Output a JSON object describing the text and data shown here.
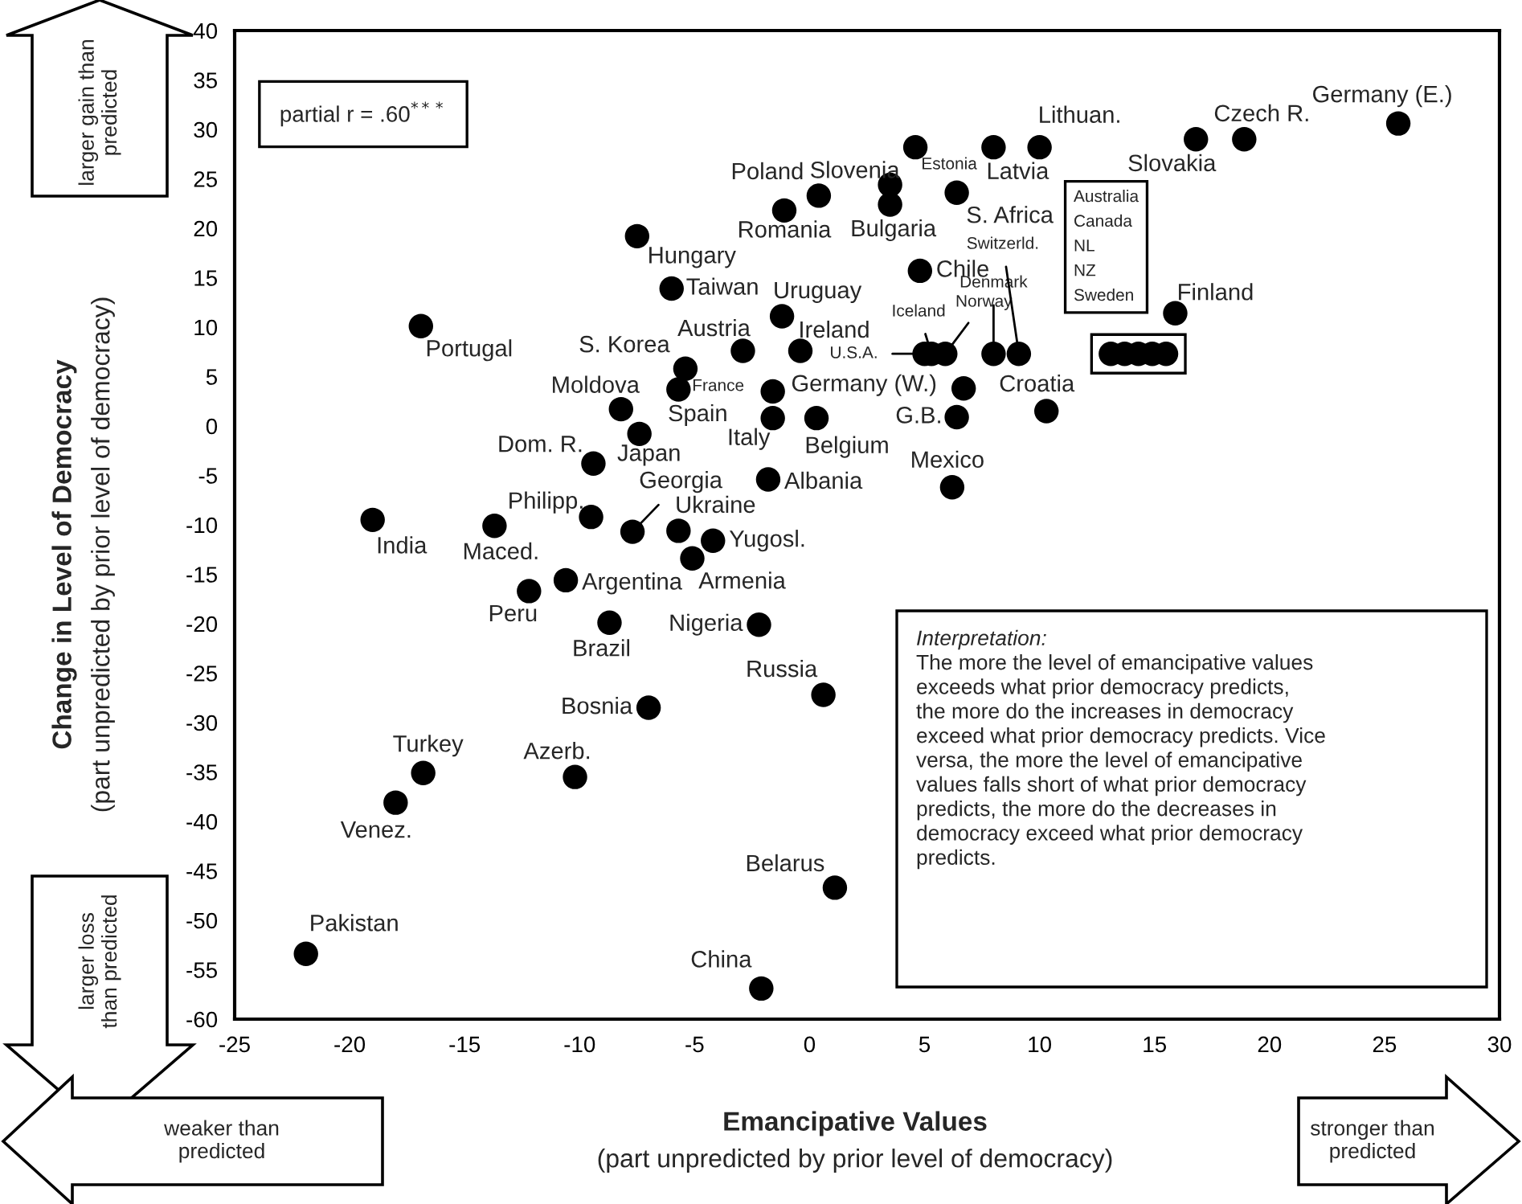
{
  "chart_data": {
    "type": "scatter",
    "xlabel": "Emancipative Values\n(part unpredicted by prior level of democracy)",
    "ylabel": "Change in Level of Democracy\n(part unpredicted by prior level of democracy)",
    "xlim": [
      -25,
      30
    ],
    "xticks": [
      -25,
      -20,
      -15,
      -10,
      -5,
      0,
      5,
      10,
      15,
      20,
      25,
      30
    ],
    "ylim": [
      -60,
      40
    ],
    "yticks": [
      -60,
      -55,
      -50,
      -45,
      -40,
      -35,
      -30,
      -25,
      -20,
      -15,
      -10,
      -5,
      0,
      5,
      10,
      15,
      20,
      25,
      30,
      35,
      40
    ],
    "grid": false,
    "marker": "circle",
    "series": [
      {
        "color": "#000000",
        "x": [
          25.6,
          18.9,
          16.8,
          10.0,
          8.0,
          4.6,
          3.5,
          0.4,
          -1.1,
          3.5,
          6.4,
          -7.5,
          4.8,
          -6.0,
          -1.2,
          15.9,
          -16.9,
          -2.9,
          -0.4,
          -5.4,
          5.0,
          5.3,
          5.9,
          8.0,
          9.1,
          13.1,
          13.7,
          14.3,
          14.9,
          15.5,
          -8.2,
          -5.7,
          -1.6,
          6.7,
          10.3,
          6.4,
          -7.4,
          -1.6,
          0.3,
          -9.4,
          6.2,
          -1.8,
          -9.5,
          -7.7,
          -5.7,
          -4.2,
          -19.0,
          -13.7,
          -5.1,
          -10.6,
          -12.2,
          -8.7,
          -2.2,
          0.6,
          -7.0,
          -16.8,
          -10.2,
          -18.0,
          1.1,
          -21.9,
          -2.1
        ],
        "values": [
          30.6,
          29.0,
          29.0,
          28.2,
          28.2,
          28.2,
          24.4,
          23.3,
          21.8,
          22.4,
          23.6,
          19.2,
          15.7,
          13.9,
          11.1,
          11.4,
          10.1,
          7.6,
          7.6,
          5.8,
          7.3,
          7.3,
          7.3,
          7.3,
          7.3,
          7.3,
          7.3,
          7.3,
          7.3,
          7.3,
          1.7,
          3.7,
          3.5,
          3.8,
          1.5,
          0.9,
          -0.8,
          0.8,
          0.8,
          -3.8,
          -6.2,
          -5.4,
          -9.2,
          -10.7,
          -10.6,
          -11.6,
          -9.5,
          -10.1,
          -13.4,
          -15.6,
          -16.7,
          -19.9,
          -20.1,
          -27.2,
          -28.5,
          -35.1,
          -35.5,
          -38.1,
          -46.7,
          -53.4,
          -56.9
        ]
      }
    ],
    "annotations": [
      {
        "text": "Germany (E.)",
        "x": 25.6,
        "y": 30.6
      },
      {
        "text": "Czech R.",
        "x": 18.9,
        "y": 29.0
      },
      {
        "text": "Slovakia",
        "x": 16.8,
        "y": 29.0
      },
      {
        "text": "Lithuan.",
        "x": 10.0,
        "y": 28.2
      },
      {
        "text": "Latvia",
        "x": 8.0,
        "y": 28.2
      },
      {
        "text": "Estonia",
        "x": 4.6,
        "y": 28.2
      },
      {
        "text": "Slovenia",
        "x": 3.5,
        "y": 24.4
      },
      {
        "text": "Poland",
        "x": 0.4,
        "y": 23.3
      },
      {
        "text": "Romania",
        "x": -1.1,
        "y": 21.8
      },
      {
        "text": "Bulgaria",
        "x": 3.5,
        "y": 22.4
      },
      {
        "text": "S. Africa",
        "x": 6.4,
        "y": 23.6
      },
      {
        "text": "Hungary",
        "x": -7.5,
        "y": 19.2
      },
      {
        "text": "Chile",
        "x": 4.8,
        "y": 15.7
      },
      {
        "text": "Taiwan",
        "x": -6.0,
        "y": 13.9
      },
      {
        "text": "Uruguay",
        "x": -1.2,
        "y": 11.1
      },
      {
        "text": "Finland",
        "x": 15.9,
        "y": 11.4
      },
      {
        "text": "Portugal",
        "x": -16.9,
        "y": 10.1
      },
      {
        "text": "Austria",
        "x": -2.9,
        "y": 7.6
      },
      {
        "text": "Ireland",
        "x": -0.4,
        "y": 7.6
      },
      {
        "text": "S. Korea",
        "x": -5.4,
        "y": 5.8
      },
      {
        "text": "U.S.A.",
        "x": 5.0,
        "y": 7.3
      },
      {
        "text": "Iceland",
        "x": 5.3,
        "y": 7.3
      },
      {
        "text": "Norway",
        "x": 5.9,
        "y": 7.3
      },
      {
        "text": "Denmark",
        "x": 8.0,
        "y": 7.3
      },
      {
        "text": "Switzerld.",
        "x": 9.1,
        "y": 7.3
      },
      "Australia\nCanada\nNL\nNZ\nSweden",
      {
        "text": "Moldova",
        "x": -8.2,
        "y": 1.7
      },
      {
        "text": "Spain",
        "x": -5.7,
        "y": 3.7
      },
      {
        "text": "France",
        "x": -1.6,
        "y": 3.5
      },
      {
        "text": "Germany (W.)",
        "x": 6.7,
        "y": 3.8
      },
      {
        "text": "Croatia",
        "x": 10.3,
        "y": 1.5
      },
      {
        "text": "G.B.",
        "x": 6.4,
        "y": 0.9
      },
      {
        "text": "Japan",
        "x": -7.4,
        "y": -0.8
      },
      {
        "text": "Italy",
        "x": -1.6,
        "y": 0.8
      },
      {
        "text": "Belgium",
        "x": 0.3,
        "y": 0.8
      },
      {
        "text": "Dom. R.",
        "x": -9.4,
        "y": -3.8
      },
      {
        "text": "Mexico",
        "x": 6.2,
        "y": -6.2
      },
      {
        "text": "Albania",
        "x": -1.8,
        "y": -5.4
      },
      {
        "text": "Philipp.",
        "x": -9.5,
        "y": -9.2
      },
      {
        "text": "Georgia",
        "x": -7.7,
        "y": -10.7
      },
      {
        "text": "Ukraine",
        "x": -5.7,
        "y": -10.6
      },
      {
        "text": "Yugosl.",
        "x": -4.2,
        "y": -11.6
      },
      {
        "text": "India",
        "x": -19.0,
        "y": -9.5
      },
      {
        "text": "Maced.",
        "x": -13.7,
        "y": -10.1
      },
      {
        "text": "Armenia",
        "x": -5.1,
        "y": -13.4
      },
      {
        "text": "Argentina",
        "x": -10.6,
        "y": -15.6
      },
      {
        "text": "Peru",
        "x": -12.2,
        "y": -16.7
      },
      {
        "text": "Brazil",
        "x": -8.7,
        "y": -19.9
      },
      {
        "text": "Nigeria",
        "x": -2.2,
        "y": -20.1
      },
      {
        "text": "Russia",
        "x": 0.6,
        "y": -27.2
      },
      {
        "text": "Bosnia",
        "x": -7.0,
        "y": -28.5
      },
      {
        "text": "Turkey",
        "x": -16.8,
        "y": -35.1
      },
      {
        "text": "Azerb.",
        "x": -10.2,
        "y": -35.5
      },
      {
        "text": "Venez.",
        "x": -18.0,
        "y": -38.1
      },
      {
        "text": "Belarus",
        "x": 1.1,
        "y": -46.7
      },
      {
        "text": "Pakistan",
        "x": -21.9,
        "y": -53.4
      },
      {
        "text": "China",
        "x": -2.1,
        "y": -56.9
      },
      "partial r = .60$^{***}$",
      "Interpretation:",
      "The more the level of emancipative values\nexceeds what prior democracy predicts,\nthe more do the increases in democracy\nexceed what prior democracy predicts. Vice\nversa, the more the level of emancipative\nvalues falls short of what prior democracy\npredicts, the more do the decreases in\ndemocracy exceed what prior democracy\npredicts.",
      "larger gain than\npredicted",
      "larger loss\nthan predicted",
      "weaker than\npredicted",
      "stronger than\npredicted"
    ]
  }
}
